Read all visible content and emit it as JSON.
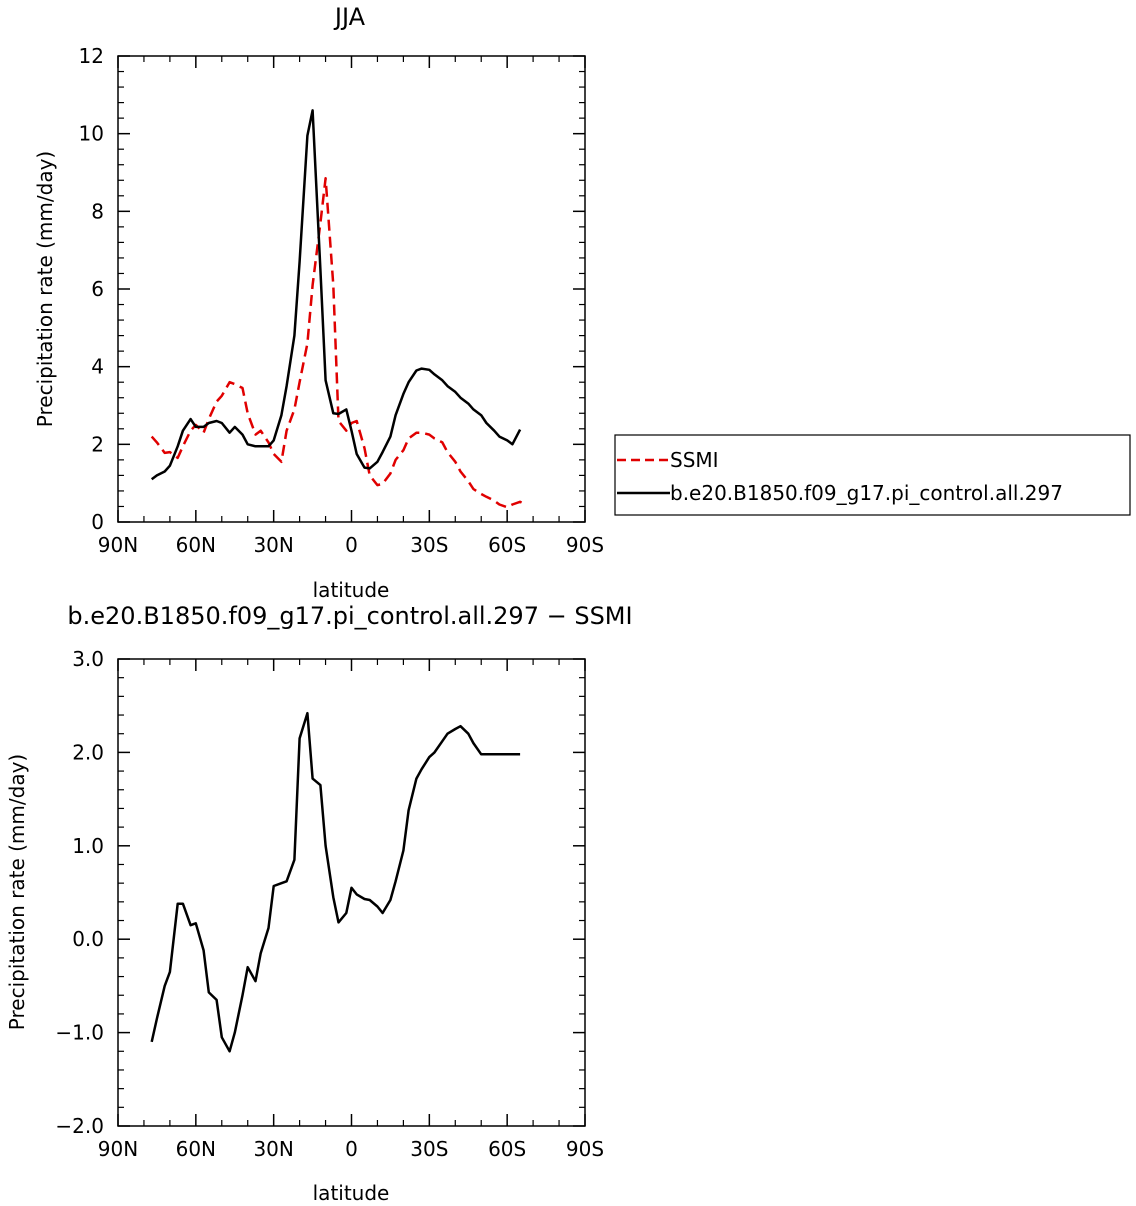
{
  "chart_data": [
    {
      "type": "line",
      "title": "JJA",
      "xlabel": "latitude",
      "ylabel": "Precipitation rate (mm/day)",
      "xlim": [
        90,
        -90
      ],
      "ylim": [
        0,
        12
      ],
      "x_ticks": [
        90,
        60,
        30,
        0,
        -30,
        -60,
        -90
      ],
      "x_tick_labels": [
        "90N",
        "60N",
        "30N",
        "0",
        "30S",
        "60S",
        "90S"
      ],
      "y_ticks": [
        0,
        2,
        4,
        6,
        8,
        10,
        12
      ],
      "y_tick_labels": [
        "0",
        "2",
        "4",
        "6",
        "8",
        "10",
        "12"
      ],
      "grid": false,
      "legend_position": "right",
      "series": [
        {
          "name": "SSMI",
          "color": "#e00000",
          "dash": "dashed",
          "x": [
            77,
            75,
            72,
            70,
            67,
            65,
            62,
            60,
            57,
            55,
            52,
            50,
            47,
            45,
            42,
            40,
            37,
            35,
            32,
            30,
            27,
            25,
            22,
            20,
            17,
            15,
            12,
            10,
            7,
            5,
            2,
            0,
            -2,
            -5,
            -7,
            -10,
            -12,
            -15,
            -17,
            -20,
            -22,
            -25,
            -27,
            -30,
            -32,
            -35,
            -37,
            -40,
            -42,
            -45,
            -47,
            -50,
            -52,
            -55,
            -57,
            -60,
            -62,
            -65,
            -67
          ],
          "y": [
            2.2,
            2.05,
            1.78,
            1.8,
            1.65,
            1.95,
            2.35,
            2.5,
            2.3,
            2.65,
            3.1,
            3.25,
            3.6,
            3.55,
            3.45,
            2.8,
            2.25,
            2.35,
            2.05,
            1.75,
            1.55,
            2.35,
            2.9,
            3.6,
            4.6,
            6.1,
            7.7,
            8.85,
            6.1,
            2.6,
            2.35,
            2.55,
            2.6,
            1.9,
            1.2,
            0.95,
            0.98,
            1.25,
            1.6,
            1.85,
            2.15,
            2.3,
            2.3,
            2.25,
            2.15,
            2.05,
            1.8,
            1.55,
            1.3,
            1.05,
            0.85,
            0.72,
            0.65,
            0.55,
            0.45,
            0.38,
            0.45,
            0.52,
            0.45
          ]
        },
        {
          "name": "b.e20.B1850.f09_g17.pi_control.all.297",
          "color": "#000000",
          "dash": "solid",
          "x": [
            77,
            75,
            72,
            70,
            67,
            65,
            62,
            60,
            57,
            55,
            52,
            50,
            47,
            45,
            42,
            40,
            37,
            35,
            32,
            30,
            27,
            25,
            22,
            20,
            17,
            15,
            12,
            10,
            7,
            5,
            2,
            0,
            -2,
            -5,
            -7,
            -10,
            -12,
            -15,
            -17,
            -20,
            -22,
            -25,
            -27,
            -30,
            -32,
            -35,
            -37,
            -40,
            -42,
            -45,
            -47,
            -50,
            -52,
            -55,
            -57,
            -60,
            -62,
            -65
          ],
          "y": [
            1.1,
            1.2,
            1.3,
            1.45,
            1.95,
            2.35,
            2.65,
            2.45,
            2.45,
            2.55,
            2.6,
            2.55,
            2.3,
            2.45,
            2.25,
            2.0,
            1.95,
            1.95,
            1.95,
            2.1,
            2.75,
            3.5,
            4.8,
            6.7,
            9.95,
            10.6,
            6.5,
            3.65,
            2.8,
            2.78,
            2.9,
            2.35,
            1.75,
            1.4,
            1.38,
            1.55,
            1.8,
            2.2,
            2.75,
            3.3,
            3.6,
            3.9,
            3.95,
            3.92,
            3.8,
            3.65,
            3.5,
            3.35,
            3.2,
            3.05,
            2.9,
            2.75,
            2.55,
            2.35,
            2.2,
            2.1,
            2.0,
            2.38
          ]
        }
      ]
    },
    {
      "type": "line",
      "title": "b.e20.B1850.f09_g17.pi_control.all.297 − SSMI",
      "xlabel": "latitude",
      "ylabel": "Precipitation rate (mm/day)",
      "xlim": [
        90,
        -90
      ],
      "ylim": [
        -2.0,
        3.0
      ],
      "x_ticks": [
        90,
        60,
        30,
        0,
        -30,
        -60,
        -90
      ],
      "x_tick_labels": [
        "90N",
        "60N",
        "30N",
        "0",
        "30S",
        "60S",
        "90S"
      ],
      "y_ticks": [
        -2.0,
        -1.0,
        0.0,
        1.0,
        2.0,
        3.0
      ],
      "y_tick_labels": [
        "−2.0",
        "−1.0",
        "0.0",
        "1.0",
        "2.0",
        "3.0"
      ],
      "grid": false,
      "series": [
        {
          "name": "",
          "color": "#000000",
          "dash": "solid",
          "x": [
            77,
            75,
            72,
            70,
            67,
            65,
            62,
            60,
            57,
            55,
            52,
            50,
            47,
            45,
            42,
            40,
            37,
            35,
            32,
            30,
            27,
            25,
            22,
            20,
            17,
            15,
            12,
            10,
            7,
            5,
            2,
            0,
            -2,
            -5,
            -7,
            -10,
            -12,
            -15,
            -17,
            -20,
            -22,
            -25,
            -27,
            -30,
            -32,
            -35,
            -37,
            -40,
            -42,
            -45,
            -47,
            -50,
            -52,
            -55,
            -57,
            -60,
            -62,
            -65
          ],
          "y": [
            -1.1,
            -0.85,
            -0.5,
            -0.35,
            0.38,
            0.38,
            0.15,
            0.17,
            -0.12,
            -0.57,
            -0.65,
            -1.05,
            -1.2,
            -1.0,
            -0.6,
            -0.3,
            -0.45,
            -0.15,
            0.12,
            0.57,
            0.6,
            0.62,
            0.85,
            2.15,
            2.42,
            1.72,
            1.65,
            1.0,
            0.45,
            0.18,
            0.28,
            0.55,
            0.48,
            0.43,
            0.42,
            0.35,
            0.28,
            0.42,
            0.62,
            0.95,
            1.38,
            1.72,
            1.82,
            1.95,
            2.0,
            2.12,
            2.2,
            2.25,
            2.28,
            2.2,
            2.1,
            1.98,
            1.98,
            1.98,
            1.98,
            1.98,
            1.98,
            1.98
          ]
        }
      ]
    }
  ]
}
